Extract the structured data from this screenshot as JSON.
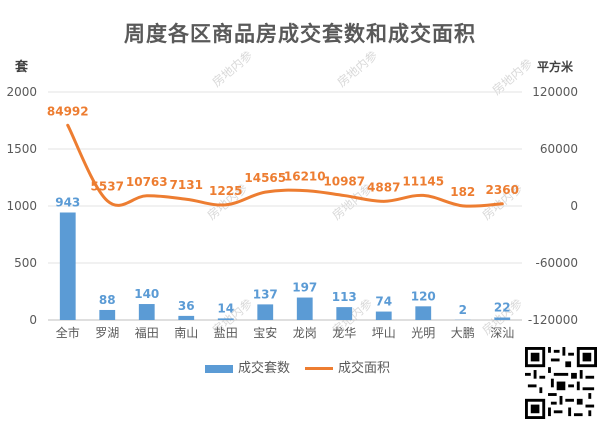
{
  "chart_data": {
    "type": "bar+line",
    "title": "周度各区商品房成交套数和成交面积",
    "y_left_label": "套",
    "y_right_label": "平方米",
    "categories": [
      "全市",
      "罗湖",
      "福田",
      "南山",
      "盐田",
      "宝安",
      "龙岗",
      "龙华",
      "坪山",
      "光明",
      "大鹏",
      "深汕"
    ],
    "series": [
      {
        "name": "成交套数",
        "type": "bar",
        "axis": "left",
        "color": "#5b9bd5",
        "values": [
          943,
          88,
          140,
          36,
          14,
          137,
          197,
          113,
          74,
          120,
          2,
          22
        ]
      },
      {
        "name": "成交面积",
        "type": "line",
        "axis": "right",
        "color": "#ed7d31",
        "values": [
          84992,
          5537,
          10763,
          7131,
          1225,
          14565,
          16210,
          10987,
          4887,
          11145,
          182,
          2360
        ]
      }
    ],
    "y_left_ticks": [
      0,
      500,
      1000,
      1500,
      2000
    ],
    "y_left_range": [
      0,
      2000
    ],
    "y_right_ticks": [
      -120000,
      -60000,
      0,
      60000,
      120000
    ],
    "y_right_range": [
      -120000,
      120000
    ],
    "grid": true,
    "legend_position": "bottom"
  },
  "watermark_text": "房地内参"
}
